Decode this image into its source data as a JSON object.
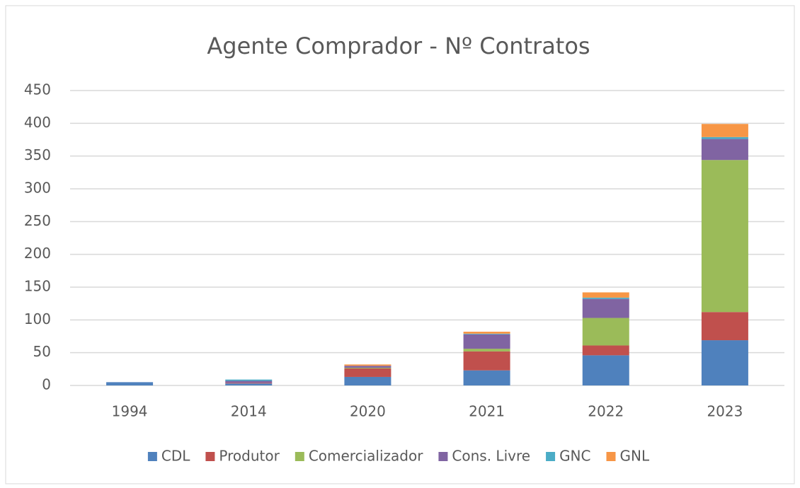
{
  "chart_data": {
    "type": "bar",
    "stacked": true,
    "title": "Agente Comprador  - Nº Contratos",
    "categories": [
      "1994",
      "2014",
      "2020",
      "2021",
      "2022",
      "2023"
    ],
    "series": [
      {
        "name": "CDL",
        "color": "#4f81bd",
        "values": [
          5,
          3,
          13,
          23,
          46,
          69
        ]
      },
      {
        "name": "Produtor",
        "color": "#c0504d",
        "values": [
          0,
          1,
          13,
          29,
          15,
          43
        ]
      },
      {
        "name": "Comercializador",
        "color": "#9bbb59",
        "values": [
          0,
          0,
          1,
          4,
          42,
          232
        ]
      },
      {
        "name": "Cons. Livre",
        "color": "#8064a2",
        "values": [
          0,
          3,
          3,
          22,
          29,
          32
        ]
      },
      {
        "name": "GNC",
        "color": "#4bacc6",
        "values": [
          0,
          2,
          0,
          1,
          2,
          3
        ]
      },
      {
        "name": "GNL",
        "color": "#f79646",
        "values": [
          0,
          0,
          2,
          3,
          8,
          20
        ]
      }
    ],
    "ylim": [
      0,
      450
    ],
    "yticks": [
      0,
      50,
      100,
      150,
      200,
      250,
      300,
      350,
      400,
      450
    ],
    "grid": true,
    "legend": "bottom"
  }
}
